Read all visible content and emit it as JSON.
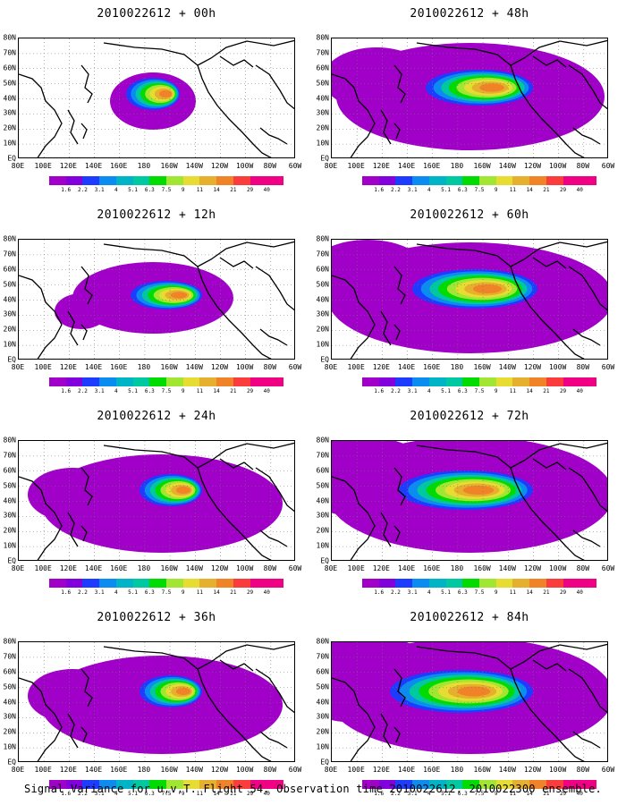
{
  "figure": {
    "caption": "Signal Variance for u,v,T. Flight 54. Observation time 2010022612. 2010022300 ensemble.",
    "y_labels": [
      "80N",
      "70N",
      "60N",
      "50N",
      "40N",
      "30N",
      "20N",
      "10N",
      "EQ"
    ],
    "x_labels": [
      "80E",
      "100E",
      "120E",
      "140E",
      "160E",
      "180",
      "160W",
      "140W",
      "120W",
      "100W",
      "80W",
      "60W"
    ],
    "colorbar": {
      "labels": [
        "1.6",
        "2.2",
        "3.1",
        "4",
        "5.1",
        "6.3",
        "7.5",
        "9",
        "11",
        "14",
        "21",
        "29",
        "40"
      ],
      "colors": [
        "#a000c8",
        "#8200dc",
        "#1e3cff",
        "#0a8cf0",
        "#00b4c8",
        "#00c8a0",
        "#00dc00",
        "#a0e632",
        "#e6dc32",
        "#e6af2d",
        "#f08228",
        "#fa3c3c",
        "#f00082"
      ]
    },
    "panels": [
      {
        "title": "2010022612 + 00h",
        "level": 0
      },
      {
        "title": "2010022612 + 48h",
        "level": 3
      },
      {
        "title": "2010022612 + 12h",
        "level": 1
      },
      {
        "title": "2010022612 + 60h",
        "level": 4
      },
      {
        "title": "2010022612 + 24h",
        "level": 2
      },
      {
        "title": "2010022612 + 72h",
        "level": 5
      },
      {
        "title": "2010022612 + 36h",
        "level": 2
      },
      {
        "title": "2010022612 + 84h",
        "level": 6
      }
    ]
  }
}
